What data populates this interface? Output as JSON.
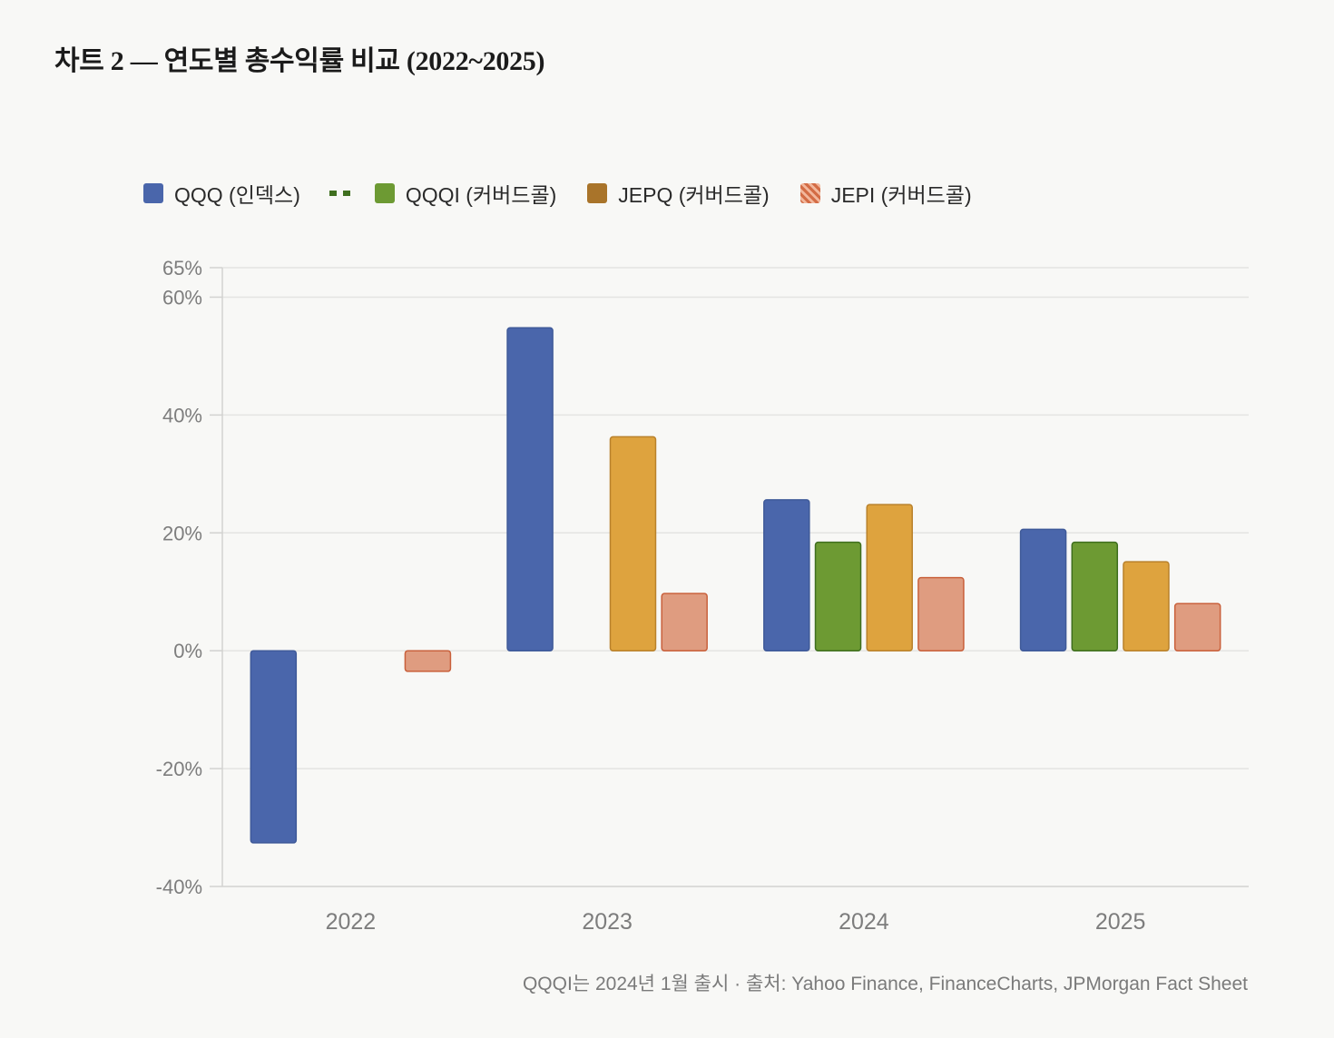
{
  "title": "차트 2 — 연도별 총수익률 비교 (2022~2025)",
  "legend": [
    {
      "label": "QQQ (인덱스)",
      "color": "#4a66ab",
      "icon": "square-swatch"
    },
    {
      "label": "QQQI (커버드콜)",
      "color": "#6d9a33",
      "icon": "square-swatch",
      "prefix_icon": "dashed-line-marker"
    },
    {
      "label": "JEPQ (커버드콜)",
      "color": "#a9742a",
      "icon": "square-swatch"
    },
    {
      "label": "JEPI (커버드콜)",
      "color": "#d36c45",
      "icon": "hatched-swatch"
    }
  ],
  "footnote": "QQQI는 2024년 1월 출시 · 출처: Yahoo Finance, FinanceCharts, JPMorgan Fact Sheet",
  "colors": {
    "qqq_bar": "#4a66ab",
    "qqqi_bar": "#6d9a33",
    "jepq_bar": "#dea33e",
    "jepi_bar": "#df9c80",
    "grid": "#e4e4e2",
    "tick_text": "#7d7d7d"
  },
  "chart_data": {
    "type": "bar",
    "categories": [
      "2022",
      "2023",
      "2024",
      "2025"
    ],
    "series": [
      {
        "name": "QQQ (인덱스)",
        "values": [
          -32.6,
          54.8,
          25.6,
          20.6
        ]
      },
      {
        "name": "QQQI (커버드콜)",
        "values": [
          null,
          null,
          18.4,
          18.4
        ]
      },
      {
        "name": "JEPQ (커버드콜)",
        "values": [
          null,
          36.3,
          24.8,
          15.1
        ]
      },
      {
        "name": "JEPI (커버드콜)",
        "values": [
          -3.5,
          9.7,
          12.4,
          8.0
        ]
      }
    ],
    "ylim": [
      -40,
      65
    ],
    "yticks": [
      -40,
      -20,
      0,
      20,
      40,
      60,
      65
    ],
    "ytick_labels": [
      "-40%",
      "-20%",
      "0%",
      "20%",
      "40%",
      "60%",
      "65%"
    ],
    "grid": true,
    "legend_position": "top"
  }
}
